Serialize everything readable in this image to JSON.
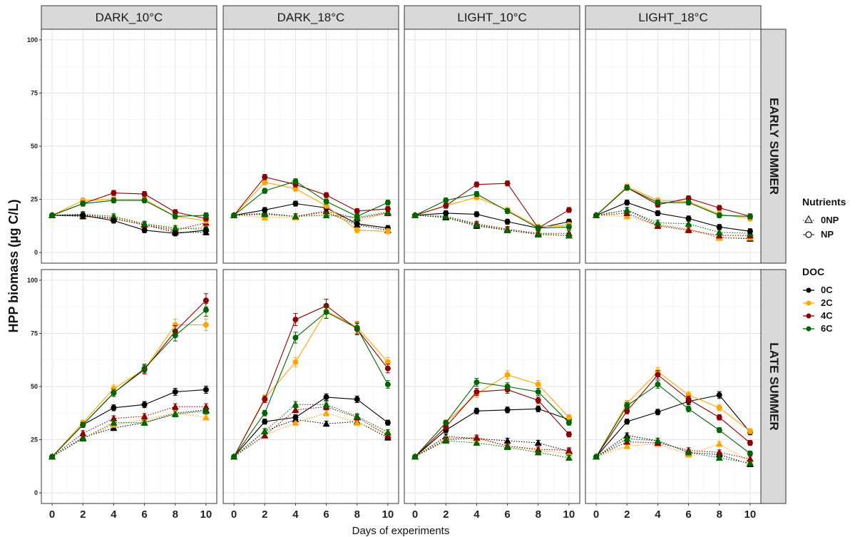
{
  "chart_data": {
    "type": "line",
    "xlabel": "Days of experiments",
    "ylabel": "HPP biomass (µg C/L)",
    "x": [
      0,
      2,
      4,
      6,
      8,
      10
    ],
    "xticks": [
      "0",
      "2",
      "4",
      "6",
      "8",
      "10"
    ],
    "ylim": [
      0,
      100
    ],
    "yticks": [
      "0",
      "25",
      "50",
      "75",
      "100"
    ],
    "grid": true,
    "col_facets": [
      "DARK_10°C",
      "DARK_18°C",
      "LIGHT_10°C",
      "LIGHT_18°C"
    ],
    "row_facets": [
      "EARLY SUMMER",
      "LATE SUMMER"
    ],
    "legends": {
      "nutrients": {
        "title": "Nutrients",
        "entries": [
          {
            "label": "0NP",
            "shape": "triangle",
            "linetype": "dotted"
          },
          {
            "label": "NP",
            "shape": "circle",
            "linetype": "solid"
          }
        ]
      },
      "doc": {
        "title": "DOC",
        "entries": [
          {
            "label": "0C",
            "color": "#000000"
          },
          {
            "label": "2C",
            "color": "#FFA500"
          },
          {
            "label": "4C",
            "color": "#8B0000"
          },
          {
            "label": "6C",
            "color": "#006400"
          }
        ]
      },
      "placement": "right"
    },
    "panels": [
      {
        "row": 0,
        "col": 0,
        "series": [
          {
            "doc": "0C",
            "nutrients": "NP",
            "values": [
              17.5,
              17.5,
              15,
              10.5,
              9,
              10.5
            ]
          },
          {
            "doc": "2C",
            "nutrients": "NP",
            "values": [
              17.5,
              24.5,
              25,
              25,
              17,
              15
            ]
          },
          {
            "doc": "4C",
            "nutrients": "NP",
            "values": [
              17.5,
              23,
              28,
              27.5,
              19,
              16
            ]
          },
          {
            "doc": "6C",
            "nutrients": "NP",
            "values": [
              17.5,
              23,
              24.5,
              24.5,
              17,
              17.5
            ]
          },
          {
            "doc": "0C",
            "nutrients": "0NP",
            "values": [
              17.5,
              17,
              16,
              13,
              9.5,
              9.5
            ]
          },
          {
            "doc": "2C",
            "nutrients": "0NP",
            "values": [
              17.5,
              17.5,
              16.5,
              13.5,
              11,
              12
            ]
          },
          {
            "doc": "4C",
            "nutrients": "0NP",
            "values": [
              17.5,
              18,
              16,
              13,
              10.5,
              14
            ]
          },
          {
            "doc": "6C",
            "nutrients": "0NP",
            "values": [
              17.5,
              18,
              17,
              13.5,
              11.5,
              11
            ]
          }
        ]
      },
      {
        "row": 0,
        "col": 1,
        "series": [
          {
            "doc": "0C",
            "nutrients": "NP",
            "values": [
              17.5,
              20,
              23,
              21,
              13.5,
              11.5
            ]
          },
          {
            "doc": "2C",
            "nutrients": "NP",
            "values": [
              17.5,
              33,
              30,
              22,
              10.5,
              10
            ]
          },
          {
            "doc": "4C",
            "nutrients": "NP",
            "values": [
              17.5,
              35.5,
              32,
              27,
              19.5,
              20.5
            ]
          },
          {
            "doc": "6C",
            "nutrients": "NP",
            "values": [
              17.5,
              29,
              33.5,
              24,
              17,
              23.5
            ]
          },
          {
            "doc": "0C",
            "nutrients": "0NP",
            "values": [
              17.5,
              18,
              17,
              19,
              13,
              10.5
            ]
          },
          {
            "doc": "2C",
            "nutrients": "0NP",
            "values": [
              17.5,
              16.5,
              16.5,
              19,
              14.5,
              19
            ]
          },
          {
            "doc": "4C",
            "nutrients": "0NP",
            "values": [
              17.5,
              18.5,
              17,
              19.5,
              16,
              18.5
            ]
          },
          {
            "doc": "6C",
            "nutrients": "0NP",
            "values": [
              17.5,
              18,
              17,
              17.5,
              16.5,
              19
            ]
          }
        ]
      },
      {
        "row": 0,
        "col": 2,
        "series": [
          {
            "doc": "0C",
            "nutrients": "NP",
            "values": [
              17.5,
              18.5,
              18,
              14.5,
              11.5,
              14.5
            ]
          },
          {
            "doc": "2C",
            "nutrients": "NP",
            "values": [
              17.5,
              22,
              26,
              20,
              12,
              13
            ]
          },
          {
            "doc": "4C",
            "nutrients": "NP",
            "values": [
              17.5,
              22,
              32,
              32.5,
              11.5,
              20
            ]
          },
          {
            "doc": "6C",
            "nutrients": "NP",
            "values": [
              17.5,
              24.5,
              27.5,
              19.5,
              11.5,
              12
            ]
          },
          {
            "doc": "0C",
            "nutrients": "0NP",
            "values": [
              17.5,
              16.5,
              12.5,
              10.5,
              8.5,
              8
            ]
          },
          {
            "doc": "2C",
            "nutrients": "0NP",
            "values": [
              17.5,
              17,
              13,
              11,
              9,
              8
            ]
          },
          {
            "doc": "4C",
            "nutrients": "0NP",
            "values": [
              17.5,
              17,
              13.5,
              11,
              9,
              9
            ]
          },
          {
            "doc": "6C",
            "nutrients": "0NP",
            "values": [
              17.5,
              17,
              13,
              10.5,
              8.5,
              8
            ]
          }
        ]
      },
      {
        "row": 0,
        "col": 3,
        "series": [
          {
            "doc": "0C",
            "nutrients": "NP",
            "values": [
              17.5,
              23.5,
              18.5,
              16,
              12,
              10
            ]
          },
          {
            "doc": "2C",
            "nutrients": "NP",
            "values": [
              17.5,
              31,
              24.5,
              24,
              18,
              16
            ]
          },
          {
            "doc": "4C",
            "nutrients": "NP",
            "values": [
              17.5,
              30.5,
              22.5,
              25.5,
              21,
              17
            ]
          },
          {
            "doc": "6C",
            "nutrients": "NP",
            "values": [
              17.5,
              30.5,
              23.5,
              23.5,
              17.5,
              17
            ]
          },
          {
            "doc": "0C",
            "nutrients": "0NP",
            "values": [
              17.5,
              20,
              13,
              11,
              7,
              6.5
            ]
          },
          {
            "doc": "2C",
            "nutrients": "0NP",
            "values": [
              17.5,
              17,
              13,
              11,
              7,
              7
            ]
          },
          {
            "doc": "4C",
            "nutrients": "0NP",
            "values": [
              17.5,
              18.5,
              12.5,
              10.5,
              8,
              8
            ]
          },
          {
            "doc": "6C",
            "nutrients": "0NP",
            "values": [
              17.5,
              20,
              14,
              13.5,
              9.5,
              9
            ]
          }
        ]
      },
      {
        "row": 1,
        "col": 0,
        "series": [
          {
            "doc": "0C",
            "nutrients": "NP",
            "values": [
              17,
              32,
              40,
              41.5,
              47.5,
              48.5
            ]
          },
          {
            "doc": "2C",
            "nutrients": "NP",
            "values": [
              17,
              33,
              49,
              58,
              79,
              79
            ]
          },
          {
            "doc": "4C",
            "nutrients": "NP",
            "values": [
              17,
              32,
              47,
              58,
              76,
              90.5
            ]
          },
          {
            "doc": "6C",
            "nutrients": "NP",
            "values": [
              17,
              32,
              47,
              58.5,
              74,
              86
            ]
          },
          {
            "doc": "0C",
            "nutrients": "0NP",
            "values": [
              17,
              26,
              30.5,
              33,
              37.5,
              39
            ]
          },
          {
            "doc": "2C",
            "nutrients": "0NP",
            "values": [
              17,
              25.5,
              32,
              34.5,
              37.5,
              35.5
            ]
          },
          {
            "doc": "4C",
            "nutrients": "0NP",
            "values": [
              17,
              28,
              35,
              36,
              40.5,
              40.5
            ]
          },
          {
            "doc": "6C",
            "nutrients": "0NP",
            "values": [
              17,
              25.5,
              33,
              33,
              37,
              38.5
            ]
          }
        ]
      },
      {
        "row": 1,
        "col": 1,
        "series": [
          {
            "doc": "0C",
            "nutrients": "NP",
            "values": [
              17,
              33.5,
              35.5,
              45,
              44,
              33
            ]
          },
          {
            "doc": "2C",
            "nutrients": "NP",
            "values": [
              17,
              44.5,
              61.5,
              85.5,
              78,
              61.5
            ]
          },
          {
            "doc": "4C",
            "nutrients": "NP",
            "values": [
              17,
              44,
              81.5,
              88,
              77,
              58.5
            ]
          },
          {
            "doc": "6C",
            "nutrients": "NP",
            "values": [
              17,
              37.5,
              73,
              85,
              77.5,
              51
            ]
          },
          {
            "doc": "0C",
            "nutrients": "0NP",
            "values": [
              17,
              29,
              34.5,
              32.5,
              33.5,
              26
            ]
          },
          {
            "doc": "2C",
            "nutrients": "0NP",
            "values": [
              17,
              27,
              33,
              37.5,
              33,
              28
            ]
          },
          {
            "doc": "4C",
            "nutrients": "0NP",
            "values": [
              17,
              27,
              39,
              40.5,
              35.5,
              27
            ]
          },
          {
            "doc": "6C",
            "nutrients": "0NP",
            "values": [
              17,
              29,
              41.5,
              41.5,
              36,
              28.5
            ]
          }
        ]
      },
      {
        "row": 1,
        "col": 2,
        "series": [
          {
            "doc": "0C",
            "nutrients": "NP",
            "values": [
              17,
              29.5,
              38.5,
              39,
              39.5,
              34.5
            ]
          },
          {
            "doc": "2C",
            "nutrients": "NP",
            "values": [
              17,
              33,
              46.5,
              55.5,
              51,
              35.5
            ]
          },
          {
            "doc": "4C",
            "nutrients": "NP",
            "values": [
              17,
              31,
              47.5,
              48.5,
              43.5,
              27.5
            ]
          },
          {
            "doc": "6C",
            "nutrients": "NP",
            "values": [
              17,
              33,
              52,
              50,
              47.5,
              33
            ]
          },
          {
            "doc": "0C",
            "nutrients": "0NP",
            "values": [
              17,
              26.5,
              25.5,
              24.5,
              23.5,
              19.5
            ]
          },
          {
            "doc": "2C",
            "nutrients": "0NP",
            "values": [
              17,
              25.5,
              25.5,
              22,
              20,
              18.5
            ]
          },
          {
            "doc": "4C",
            "nutrients": "0NP",
            "values": [
              17,
              25,
              26,
              22,
              20.5,
              20
            ]
          },
          {
            "doc": "6C",
            "nutrients": "0NP",
            "values": [
              17,
              24.5,
              23.5,
              21.5,
              19,
              16.5
            ]
          }
        ]
      },
      {
        "row": 1,
        "col": 3,
        "series": [
          {
            "doc": "0C",
            "nutrients": "NP",
            "values": [
              17,
              33.5,
              38,
              43,
              46,
              28.5
            ]
          },
          {
            "doc": "2C",
            "nutrients": "NP",
            "values": [
              17,
              42,
              57,
              46,
              40,
              29
            ]
          },
          {
            "doc": "4C",
            "nutrients": "NP",
            "values": [
              17,
              38.5,
              55.5,
              44,
              35.5,
              23.5
            ]
          },
          {
            "doc": "6C",
            "nutrients": "NP",
            "values": [
              17,
              41,
              51,
              39.5,
              29.5,
              18.5
            ]
          },
          {
            "doc": "0C",
            "nutrients": "0NP",
            "values": [
              17,
              27,
              24.5,
              19,
              18,
              13.5
            ]
          },
          {
            "doc": "2C",
            "nutrients": "0NP",
            "values": [
              17,
              22,
              23,
              18,
              23,
              14.5
            ]
          },
          {
            "doc": "4C",
            "nutrients": "0NP",
            "values": [
              17,
              24,
              23.5,
              20,
              19,
              16
            ]
          },
          {
            "doc": "6C",
            "nutrients": "0NP",
            "values": [
              17,
              25.5,
              24.5,
              19,
              16.5,
              14
            ]
          }
        ]
      }
    ]
  }
}
